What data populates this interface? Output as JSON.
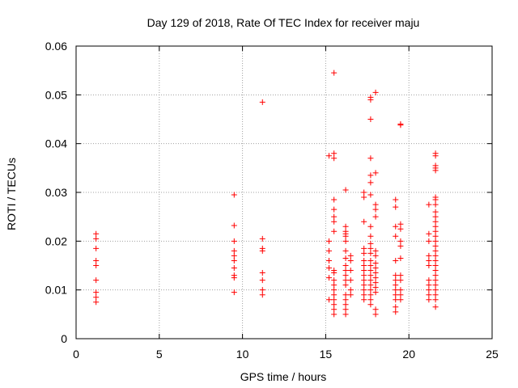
{
  "chart_data": {
    "type": "scatter",
    "title": "Day 129 of 2018, Rate Of TEC Index for receiver maju",
    "xlabel": "GPS time / hours",
    "ylabel": "ROTI / TECUs",
    "xlim": [
      0,
      25
    ],
    "ylim": [
      0,
      0.06
    ],
    "xticks": [
      0,
      5,
      10,
      15,
      20,
      25
    ],
    "yticks": [
      0,
      0.01,
      0.02,
      0.03,
      0.04,
      0.05,
      0.06
    ],
    "xtick_labels": [
      "0",
      "5",
      "10",
      "15",
      "20",
      "25"
    ],
    "ytick_labels": [
      "0",
      "0.01",
      "0.02",
      "0.03",
      "0.04",
      "0.05",
      "0.06"
    ],
    "grid": true,
    "marker": "+",
    "color": "#ff0000",
    "series": [
      {
        "name": "ROTI",
        "points": [
          [
            1.2,
            0.0215
          ],
          [
            1.2,
            0.0205
          ],
          [
            1.2,
            0.0185
          ],
          [
            1.2,
            0.016
          ],
          [
            1.2,
            0.015
          ],
          [
            1.2,
            0.012
          ],
          [
            1.2,
            0.0095
          ],
          [
            1.2,
            0.0085
          ],
          [
            1.2,
            0.0075
          ],
          [
            9.5,
            0.0295
          ],
          [
            9.5,
            0.0232
          ],
          [
            9.5,
            0.02
          ],
          [
            9.5,
            0.018
          ],
          [
            9.5,
            0.017
          ],
          [
            9.5,
            0.016
          ],
          [
            9.5,
            0.0145
          ],
          [
            9.5,
            0.013
          ],
          [
            9.5,
            0.0125
          ],
          [
            9.5,
            0.0095
          ],
          [
            11.2,
            0.0485
          ],
          [
            11.2,
            0.0205
          ],
          [
            11.2,
            0.0185
          ],
          [
            11.2,
            0.018
          ],
          [
            11.2,
            0.0135
          ],
          [
            11.2,
            0.012
          ],
          [
            11.2,
            0.01
          ],
          [
            11.2,
            0.009
          ],
          [
            15.2,
            0.0375
          ],
          [
            15.2,
            0.02
          ],
          [
            15.2,
            0.018
          ],
          [
            15.2,
            0.016
          ],
          [
            15.2,
            0.0145
          ],
          [
            15.2,
            0.0125
          ],
          [
            15.2,
            0.008
          ],
          [
            15.5,
            0.0545
          ],
          [
            15.5,
            0.038
          ],
          [
            15.5,
            0.037
          ],
          [
            15.5,
            0.0285
          ],
          [
            15.5,
            0.0265
          ],
          [
            15.5,
            0.025
          ],
          [
            15.5,
            0.024
          ],
          [
            15.5,
            0.022
          ],
          [
            15.5,
            0.014
          ],
          [
            15.5,
            0.0135
          ],
          [
            15.5,
            0.012
          ],
          [
            15.5,
            0.011
          ],
          [
            15.5,
            0.01
          ],
          [
            15.5,
            0.009
          ],
          [
            15.5,
            0.008
          ],
          [
            15.5,
            0.007
          ],
          [
            15.5,
            0.006
          ],
          [
            15.5,
            0.005
          ],
          [
            16.2,
            0.0305
          ],
          [
            16.2,
            0.023
          ],
          [
            16.2,
            0.022
          ],
          [
            16.2,
            0.0215
          ],
          [
            16.2,
            0.021
          ],
          [
            16.2,
            0.02
          ],
          [
            16.2,
            0.018
          ],
          [
            16.2,
            0.0165
          ],
          [
            16.2,
            0.015
          ],
          [
            16.2,
            0.014
          ],
          [
            16.2,
            0.013
          ],
          [
            16.2,
            0.012
          ],
          [
            16.2,
            0.011
          ],
          [
            16.2,
            0.009
          ],
          [
            16.2,
            0.008
          ],
          [
            16.2,
            0.007
          ],
          [
            16.2,
            0.006
          ],
          [
            16.2,
            0.005
          ],
          [
            16.5,
            0.017
          ],
          [
            16.5,
            0.016
          ],
          [
            16.5,
            0.014
          ],
          [
            16.5,
            0.012
          ],
          [
            16.5,
            0.01
          ],
          [
            16.5,
            0.009
          ],
          [
            17.3,
            0.03
          ],
          [
            17.3,
            0.029
          ],
          [
            17.3,
            0.024
          ],
          [
            17.3,
            0.0185
          ],
          [
            17.3,
            0.0175
          ],
          [
            17.3,
            0.016
          ],
          [
            17.3,
            0.015
          ],
          [
            17.3,
            0.014
          ],
          [
            17.3,
            0.013
          ],
          [
            17.3,
            0.012
          ],
          [
            17.3,
            0.011
          ],
          [
            17.3,
            0.01
          ],
          [
            17.3,
            0.009
          ],
          [
            17.3,
            0.008
          ],
          [
            17.7,
            0.0495
          ],
          [
            17.7,
            0.049
          ],
          [
            17.7,
            0.045
          ],
          [
            17.7,
            0.037
          ],
          [
            17.7,
            0.0335
          ],
          [
            17.7,
            0.032
          ],
          [
            17.7,
            0.0295
          ],
          [
            17.7,
            0.023
          ],
          [
            17.7,
            0.021
          ],
          [
            17.7,
            0.0195
          ],
          [
            17.7,
            0.0185
          ],
          [
            17.7,
            0.0175
          ],
          [
            17.7,
            0.016
          ],
          [
            17.7,
            0.015
          ],
          [
            17.7,
            0.014
          ],
          [
            17.7,
            0.013
          ],
          [
            17.7,
            0.012
          ],
          [
            17.7,
            0.011
          ],
          [
            17.7,
            0.01
          ],
          [
            17.7,
            0.009
          ],
          [
            17.7,
            0.008
          ],
          [
            17.7,
            0.007
          ],
          [
            18.0,
            0.0505
          ],
          [
            18.0,
            0.034
          ],
          [
            18.0,
            0.0275
          ],
          [
            18.0,
            0.0265
          ],
          [
            18.0,
            0.025
          ],
          [
            18.0,
            0.018
          ],
          [
            18.0,
            0.017
          ],
          [
            18.0,
            0.0155
          ],
          [
            18.0,
            0.0145
          ],
          [
            18.0,
            0.0135
          ],
          [
            18.0,
            0.0125
          ],
          [
            18.0,
            0.0115
          ],
          [
            18.0,
            0.0105
          ],
          [
            18.0,
            0.0095
          ],
          [
            18.0,
            0.006
          ],
          [
            18.0,
            0.005
          ],
          [
            19.2,
            0.0285
          ],
          [
            19.2,
            0.027
          ],
          [
            19.2,
            0.023
          ],
          [
            19.2,
            0.021
          ],
          [
            19.2,
            0.016
          ],
          [
            19.2,
            0.013
          ],
          [
            19.2,
            0.012
          ],
          [
            19.2,
            0.011
          ],
          [
            19.2,
            0.01
          ],
          [
            19.2,
            0.009
          ],
          [
            19.2,
            0.008
          ],
          [
            19.2,
            0.0065
          ],
          [
            19.2,
            0.0055
          ],
          [
            19.5,
            0.044
          ],
          [
            19.5,
            0.0438
          ],
          [
            19.5,
            0.0235
          ],
          [
            19.5,
            0.0225
          ],
          [
            19.5,
            0.02
          ],
          [
            19.5,
            0.019
          ],
          [
            19.5,
            0.0165
          ],
          [
            19.5,
            0.013
          ],
          [
            19.5,
            0.012
          ],
          [
            19.5,
            0.01
          ],
          [
            19.5,
            0.009
          ],
          [
            19.5,
            0.008
          ],
          [
            21.2,
            0.0275
          ],
          [
            21.2,
            0.0215
          ],
          [
            21.2,
            0.02
          ],
          [
            21.2,
            0.017
          ],
          [
            21.2,
            0.016
          ],
          [
            21.2,
            0.015
          ],
          [
            21.2,
            0.012
          ],
          [
            21.2,
            0.011
          ],
          [
            21.2,
            0.01
          ],
          [
            21.2,
            0.009
          ],
          [
            21.2,
            0.008
          ],
          [
            21.6,
            0.038
          ],
          [
            21.6,
            0.0375
          ],
          [
            21.6,
            0.0355
          ],
          [
            21.6,
            0.035
          ],
          [
            21.6,
            0.0345
          ],
          [
            21.6,
            0.029
          ],
          [
            21.6,
            0.0285
          ],
          [
            21.6,
            0.0275
          ],
          [
            21.6,
            0.026
          ],
          [
            21.6,
            0.025
          ],
          [
            21.6,
            0.024
          ],
          [
            21.6,
            0.023
          ],
          [
            21.6,
            0.022
          ],
          [
            21.6,
            0.021
          ],
          [
            21.6,
            0.02
          ],
          [
            21.6,
            0.019
          ],
          [
            21.6,
            0.018
          ],
          [
            21.6,
            0.017
          ],
          [
            21.6,
            0.016
          ],
          [
            21.6,
            0.015
          ],
          [
            21.6,
            0.014
          ],
          [
            21.6,
            0.013
          ],
          [
            21.6,
            0.012
          ],
          [
            21.6,
            0.011
          ],
          [
            21.6,
            0.01
          ],
          [
            21.6,
            0.009
          ],
          [
            21.6,
            0.008
          ],
          [
            21.6,
            0.0065
          ]
        ]
      }
    ]
  }
}
